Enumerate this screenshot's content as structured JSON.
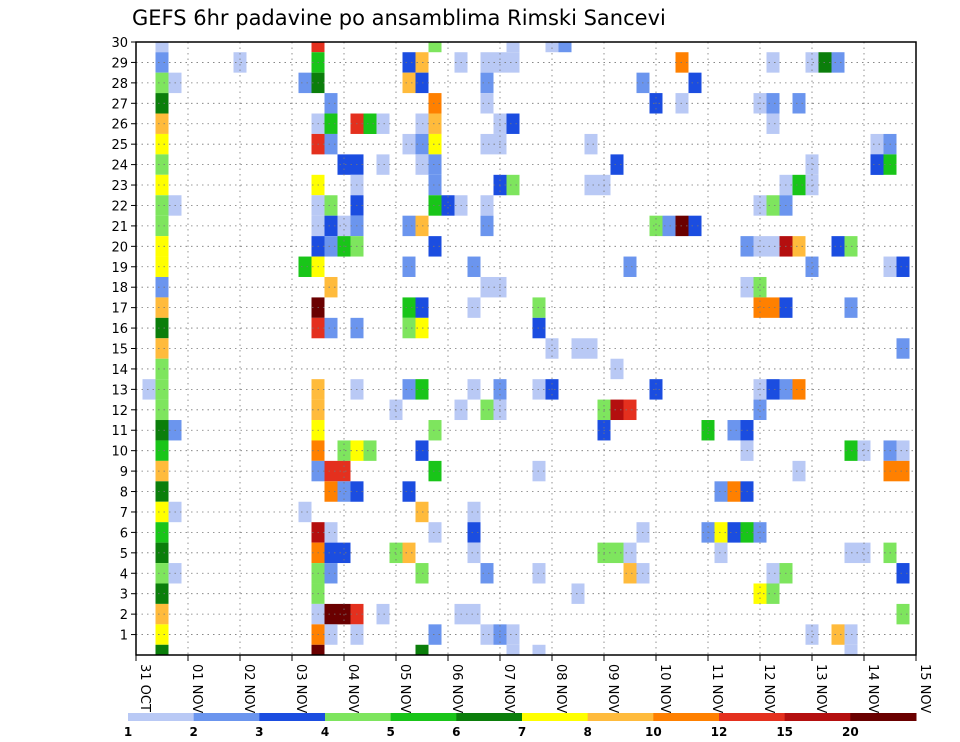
{
  "chart_data": {
    "type": "heatmap",
    "title": "GEFS 6hr padavine po ansamblima Rimski Sancevi",
    "xlabel": "",
    "ylabel": "",
    "x_ticks": [
      "31 OCT",
      "01 NOV",
      "02 NOV",
      "03 NOV",
      "04 NOV",
      "05 NOV",
      "06 NOV",
      "07 NOV",
      "08 NOV",
      "09 NOV",
      "10 NOV",
      "11 NOV",
      "12 NOV",
      "13 NOV",
      "14 NOV",
      "15 NOV"
    ],
    "y_ticks": [
      "1",
      "2",
      "3",
      "4",
      "5",
      "6",
      "7",
      "8",
      "9",
      "10",
      "11",
      "12",
      "13",
      "14",
      "15",
      "16",
      "17",
      "18",
      "19",
      "20",
      "21",
      "22",
      "23",
      "24",
      "25",
      "26",
      "27",
      "28",
      "29",
      "30"
    ],
    "x_range": [
      0,
      15
    ],
    "y_range": [
      0,
      30
    ],
    "grid": true,
    "colorbar": {
      "colors": [
        "#b9c9f5",
        "#6b95ee",
        "#1b4de0",
        "#7ee55e",
        "#19c519",
        "#0b7e0b",
        "#ffff00",
        "#ffbb3c",
        "#ff8000",
        "#e4301e",
        "#b40f0f",
        "#6a0000"
      ],
      "labels": [
        "1",
        "2",
        "3",
        "4",
        "5",
        "6",
        "7",
        "8",
        "10",
        "12",
        "15",
        "20"
      ]
    },
    "cells": [
      [
        0.5,
        30,
        1
      ],
      [
        0.5,
        29,
        2
      ],
      [
        0.5,
        28,
        4
      ],
      [
        0.5,
        27,
        6
      ],
      [
        0.5,
        26,
        8
      ],
      [
        0.5,
        25,
        7
      ],
      [
        0.5,
        24,
        4
      ],
      [
        0.5,
        23,
        7
      ],
      [
        0.5,
        22,
        4
      ],
      [
        0.5,
        21,
        4
      ],
      [
        0.5,
        20,
        7
      ],
      [
        0.5,
        19,
        7
      ],
      [
        0.5,
        18,
        2
      ],
      [
        0.5,
        17,
        8
      ],
      [
        0.5,
        16,
        6
      ],
      [
        0.5,
        15,
        8
      ],
      [
        0.5,
        14,
        4
      ],
      [
        0.5,
        13,
        4
      ],
      [
        0.5,
        12,
        4
      ],
      [
        0.5,
        11,
        6
      ],
      [
        0.5,
        10,
        5
      ],
      [
        0.5,
        9,
        8
      ],
      [
        0.5,
        8,
        6
      ],
      [
        0.5,
        7,
        7
      ],
      [
        0.5,
        6,
        5
      ],
      [
        0.5,
        5,
        6
      ],
      [
        0.5,
        4,
        4
      ],
      [
        0.5,
        3,
        6
      ],
      [
        0.5,
        2,
        8
      ],
      [
        0.5,
        1,
        7
      ],
      [
        0.5,
        0,
        6
      ],
      [
        0.25,
        13,
        1
      ],
      [
        0.75,
        28,
        1
      ],
      [
        0.75,
        22,
        1
      ],
      [
        0.75,
        11,
        2
      ],
      [
        0.75,
        7,
        1
      ],
      [
        0.75,
        4,
        1
      ],
      [
        2.0,
        29,
        1
      ],
      [
        3.25,
        28,
        2
      ],
      [
        3.25,
        19,
        5
      ],
      [
        3.25,
        7,
        1
      ],
      [
        3.5,
        30,
        10
      ],
      [
        3.5,
        29,
        5
      ],
      [
        3.5,
        28,
        6
      ],
      [
        3.5,
        26,
        1
      ],
      [
        3.5,
        25,
        10
      ],
      [
        3.5,
        23,
        7
      ],
      [
        3.5,
        22,
        1
      ],
      [
        3.5,
        21,
        1
      ],
      [
        3.5,
        20,
        3
      ],
      [
        3.5,
        19,
        7
      ],
      [
        3.5,
        17,
        12
      ],
      [
        3.5,
        16,
        10
      ],
      [
        3.5,
        13,
        8
      ],
      [
        3.5,
        12,
        8
      ],
      [
        3.5,
        11,
        7
      ],
      [
        3.5,
        10,
        9
      ],
      [
        3.5,
        9,
        2
      ],
      [
        3.5,
        6,
        11
      ],
      [
        3.5,
        5,
        9
      ],
      [
        3.5,
        4,
        4
      ],
      [
        3.5,
        3,
        4
      ],
      [
        3.5,
        2,
        1
      ],
      [
        3.5,
        1,
        9
      ],
      [
        3.5,
        0,
        12
      ],
      [
        3.75,
        27,
        2
      ],
      [
        3.75,
        26,
        5
      ],
      [
        3.75,
        25,
        2
      ],
      [
        3.75,
        22,
        4
      ],
      [
        3.75,
        21,
        3
      ],
      [
        3.75,
        20,
        2
      ],
      [
        3.75,
        18,
        8
      ],
      [
        3.75,
        16,
        2
      ],
      [
        3.75,
        9,
        10
      ],
      [
        3.75,
        8,
        9
      ],
      [
        3.75,
        6,
        1
      ],
      [
        3.75,
        5,
        3
      ],
      [
        3.75,
        4,
        2
      ],
      [
        3.75,
        2,
        12
      ],
      [
        3.75,
        1,
        1
      ],
      [
        4.0,
        24,
        3
      ],
      [
        4.0,
        21,
        1
      ],
      [
        4.0,
        20,
        5
      ],
      [
        4.0,
        10,
        4
      ],
      [
        4.0,
        9,
        10
      ],
      [
        4.0,
        8,
        2
      ],
      [
        4.0,
        5,
        3
      ],
      [
        4.0,
        2,
        12
      ],
      [
        4.25,
        26,
        10
      ],
      [
        4.25,
        24,
        3
      ],
      [
        4.25,
        23,
        1
      ],
      [
        4.25,
        22,
        3
      ],
      [
        4.25,
        21,
        2
      ],
      [
        4.25,
        20,
        4
      ],
      [
        4.25,
        16,
        2
      ],
      [
        4.25,
        13,
        1
      ],
      [
        4.25,
        10,
        7
      ],
      [
        4.25,
        8,
        3
      ],
      [
        4.25,
        2,
        10
      ],
      [
        4.25,
        1,
        1
      ],
      [
        4.5,
        26,
        5
      ],
      [
        4.5,
        10,
        4
      ],
      [
        4.5,
        26,
        5
      ],
      [
        4.75,
        26,
        1
      ],
      [
        4.75,
        24,
        1
      ],
      [
        4.75,
        2,
        1
      ],
      [
        5.0,
        12,
        1
      ],
      [
        5.0,
        5,
        4
      ],
      [
        5.25,
        29,
        3
      ],
      [
        5.25,
        28,
        8
      ],
      [
        5.25,
        25,
        1
      ],
      [
        5.25,
        21,
        2
      ],
      [
        5.25,
        19,
        2
      ],
      [
        5.25,
        17,
        5
      ],
      [
        5.25,
        16,
        4
      ],
      [
        5.25,
        13,
        2
      ],
      [
        5.25,
        8,
        3
      ],
      [
        5.25,
        5,
        8
      ],
      [
        5.5,
        29,
        8
      ],
      [
        5.5,
        28,
        3
      ],
      [
        5.5,
        26,
        1
      ],
      [
        5.5,
        25,
        2
      ],
      [
        5.5,
        24,
        1
      ],
      [
        5.5,
        21,
        8
      ],
      [
        5.5,
        17,
        3
      ],
      [
        5.5,
        16,
        7
      ],
      [
        5.5,
        13,
        5
      ],
      [
        5.5,
        10,
        3
      ],
      [
        5.5,
        7,
        8
      ],
      [
        5.5,
        4,
        4
      ],
      [
        5.5,
        0,
        6
      ],
      [
        5.75,
        30,
        4
      ],
      [
        5.75,
        27,
        9
      ],
      [
        5.75,
        26,
        8
      ],
      [
        5.75,
        25,
        7
      ],
      [
        5.75,
        24,
        2
      ],
      [
        5.75,
        23,
        2
      ],
      [
        5.75,
        22,
        5
      ],
      [
        5.75,
        20,
        3
      ],
      [
        5.75,
        11,
        4
      ],
      [
        5.75,
        9,
        5
      ],
      [
        5.75,
        6,
        1
      ],
      [
        5.75,
        1,
        2
      ],
      [
        6.0,
        22,
        3
      ],
      [
        6.25,
        29,
        1
      ],
      [
        6.25,
        22,
        1
      ],
      [
        6.25,
        12,
        1
      ],
      [
        6.25,
        2,
        1
      ],
      [
        6.5,
        19,
        2
      ],
      [
        6.5,
        17,
        1
      ],
      [
        6.5,
        13,
        1
      ],
      [
        6.5,
        7,
        1
      ],
      [
        6.5,
        6,
        3
      ],
      [
        6.5,
        5,
        1
      ],
      [
        6.5,
        2,
        1
      ],
      [
        6.75,
        29,
        1
      ],
      [
        6.75,
        28,
        2
      ],
      [
        6.75,
        27,
        1
      ],
      [
        6.75,
        25,
        1
      ],
      [
        6.75,
        22,
        1
      ],
      [
        6.75,
        21,
        2
      ],
      [
        6.75,
        18,
        1
      ],
      [
        6.75,
        12,
        4
      ],
      [
        6.75,
        4,
        2
      ],
      [
        6.75,
        1,
        1
      ],
      [
        7.0,
        29,
        1
      ],
      [
        7.0,
        26,
        1
      ],
      [
        7.0,
        25,
        1
      ],
      [
        7.0,
        23,
        3
      ],
      [
        7.0,
        18,
        1
      ],
      [
        7.0,
        13,
        2
      ],
      [
        7.0,
        12,
        1
      ],
      [
        7.0,
        1,
        2
      ],
      [
        7.25,
        30,
        1
      ],
      [
        7.25,
        29,
        1
      ],
      [
        7.25,
        26,
        3
      ],
      [
        7.25,
        23,
        4
      ],
      [
        7.25,
        0,
        1
      ],
      [
        7.25,
        1,
        1
      ],
      [
        7.75,
        17,
        4
      ],
      [
        7.75,
        16,
        3
      ],
      [
        7.75,
        13,
        1
      ],
      [
        7.75,
        9,
        1
      ],
      [
        7.75,
        4,
        1
      ],
      [
        7.75,
        0,
        1
      ],
      [
        8.0,
        30,
        1
      ],
      [
        8.0,
        15,
        1
      ],
      [
        8.0,
        13,
        3
      ],
      [
        8.25,
        30,
        2
      ],
      [
        8.5,
        15,
        1
      ],
      [
        8.5,
        3,
        1
      ],
      [
        8.75,
        15,
        1
      ],
      [
        8.75,
        25,
        1
      ],
      [
        8.75,
        23,
        1
      ],
      [
        9.0,
        23,
        1
      ],
      [
        9.0,
        12,
        4
      ],
      [
        9.0,
        11,
        3
      ],
      [
        9.0,
        5,
        4
      ],
      [
        9.25,
        24,
        3
      ],
      [
        9.25,
        14,
        1
      ],
      [
        9.25,
        12,
        11
      ],
      [
        9.25,
        5,
        4
      ],
      [
        9.5,
        19,
        2
      ],
      [
        9.5,
        12,
        10
      ],
      [
        9.5,
        5,
        1
      ],
      [
        9.5,
        4,
        8
      ],
      [
        9.75,
        28,
        2
      ],
      [
        9.75,
        6,
        1
      ],
      [
        9.75,
        4,
        1
      ],
      [
        10.0,
        27,
        3
      ],
      [
        10.0,
        21,
        4
      ],
      [
        10.0,
        13,
        3
      ],
      [
        10.25,
        21,
        2
      ],
      [
        10.5,
        29,
        9
      ],
      [
        10.5,
        27,
        1
      ],
      [
        10.5,
        21,
        12
      ],
      [
        10.75,
        21,
        3
      ],
      [
        10.75,
        28,
        3
      ],
      [
        11.0,
        11,
        5
      ],
      [
        11.0,
        6,
        2
      ],
      [
        11.25,
        8,
        2
      ],
      [
        11.25,
        6,
        7
      ],
      [
        11.25,
        5,
        1
      ],
      [
        11.5,
        11,
        2
      ],
      [
        11.5,
        8,
        9
      ],
      [
        11.5,
        6,
        3
      ],
      [
        11.75,
        20,
        2
      ],
      [
        11.75,
        18,
        1
      ],
      [
        11.75,
        11,
        3
      ],
      [
        11.75,
        10,
        1
      ],
      [
        11.75,
        8,
        3
      ],
      [
        11.75,
        6,
        5
      ],
      [
        12.0,
        27,
        1
      ],
      [
        12.0,
        22,
        1
      ],
      [
        12.0,
        20,
        1
      ],
      [
        12.0,
        18,
        4
      ],
      [
        12.0,
        17,
        9
      ],
      [
        12.0,
        13,
        1
      ],
      [
        12.0,
        12,
        2
      ],
      [
        12.0,
        6,
        2
      ],
      [
        12.0,
        3,
        7
      ],
      [
        12.25,
        29,
        1
      ],
      [
        12.25,
        27,
        2
      ],
      [
        12.25,
        26,
        1
      ],
      [
        12.25,
        22,
        4
      ],
      [
        12.25,
        20,
        1
      ],
      [
        12.25,
        17,
        9
      ],
      [
        12.25,
        13,
        3
      ],
      [
        12.25,
        4,
        1
      ],
      [
        12.25,
        3,
        4
      ],
      [
        12.5,
        23,
        1
      ],
      [
        12.5,
        22,
        2
      ],
      [
        12.5,
        20,
        11
      ],
      [
        12.5,
        17,
        3
      ],
      [
        12.5,
        13,
        2
      ],
      [
        12.5,
        4,
        4
      ],
      [
        12.75,
        27,
        2
      ],
      [
        12.75,
        23,
        5
      ],
      [
        12.75,
        20,
        8
      ],
      [
        12.75,
        13,
        9
      ],
      [
        12.75,
        9,
        1
      ],
      [
        13.0,
        29,
        1
      ],
      [
        13.0,
        24,
        1
      ],
      [
        13.0,
        23,
        1
      ],
      [
        13.0,
        19,
        2
      ],
      [
        13.0,
        1,
        1
      ],
      [
        13.25,
        29,
        6
      ],
      [
        13.5,
        29,
        2
      ],
      [
        13.5,
        20,
        3
      ],
      [
        13.5,
        1,
        8
      ],
      [
        13.75,
        20,
        4
      ],
      [
        13.75,
        17,
        2
      ],
      [
        13.75,
        10,
        5
      ],
      [
        13.75,
        5,
        1
      ],
      [
        13.75,
        1,
        1
      ],
      [
        13.75,
        0,
        1
      ],
      [
        14.0,
        10,
        1
      ],
      [
        14.0,
        5,
        1
      ],
      [
        14.25,
        25,
        1
      ],
      [
        14.25,
        24,
        3
      ],
      [
        14.25,
        24,
        3
      ],
      [
        14.5,
        25,
        2
      ],
      [
        14.5,
        24,
        5
      ],
      [
        14.5,
        19,
        1
      ],
      [
        14.5,
        10,
        2
      ],
      [
        14.5,
        9,
        9
      ],
      [
        14.5,
        5,
        4
      ],
      [
        14.75,
        19,
        3
      ],
      [
        14.75,
        15,
        2
      ],
      [
        14.75,
        10,
        1
      ],
      [
        14.75,
        9,
        9
      ],
      [
        14.75,
        4,
        3
      ],
      [
        14.75,
        2,
        4
      ]
    ]
  }
}
